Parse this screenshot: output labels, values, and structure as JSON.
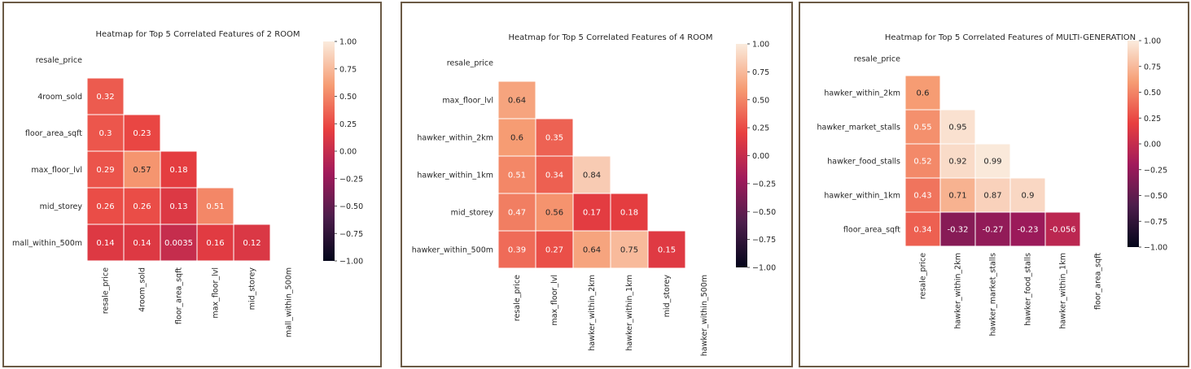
{
  "colors": {
    "border": "#6b5a45",
    "colormap": [
      "#03051a",
      "#4c1d4b",
      "#a11a5b",
      "#e83f3f",
      "#f69c73",
      "#faebdd"
    ],
    "gridline": "#ffffff"
  },
  "chart_data": [
    {
      "type": "heatmap",
      "title": "Heatmap for Top 5 Correlated Features of 2 ROOM",
      "features": [
        "resale_price",
        "4room_sold",
        "floor_area_sqft",
        "max_floor_lvl",
        "mid_storey",
        "mall_within_500m"
      ],
      "cells": [
        [
          "0.32"
        ],
        [
          "0.3",
          "0.23"
        ],
        [
          "0.29",
          "0.57",
          "0.18"
        ],
        [
          "0.26",
          "0.26",
          "0.13",
          "0.51"
        ],
        [
          "0.14",
          "0.14",
          "0.0035",
          "0.16",
          "0.12"
        ]
      ],
      "mask": "upper-triangle-including-diagonal",
      "colorbar": {
        "range": [
          -1,
          1
        ],
        "ticks": [
          "1.00",
          "0.75",
          "0.50",
          "0.25",
          "0.00",
          "−0.25",
          "−0.50",
          "−0.75",
          "−1.00"
        ]
      }
    },
    {
      "type": "heatmap",
      "title": "Heatmap for Top 5 Correlated Features of 4 ROOM",
      "features": [
        "resale_price",
        "max_floor_lvl",
        "hawker_within_2km",
        "hawker_within_1km",
        "mid_storey",
        "hawker_within_500m"
      ],
      "cells": [
        [
          "0.64"
        ],
        [
          "0.6",
          "0.35"
        ],
        [
          "0.51",
          "0.34",
          "0.84"
        ],
        [
          "0.47",
          "0.56",
          "0.17",
          "0.18"
        ],
        [
          "0.39",
          "0.27",
          "0.64",
          "0.75",
          "0.15"
        ]
      ],
      "mask": "upper-triangle-including-diagonal",
      "colorbar": {
        "range": [
          -1,
          1
        ],
        "ticks": [
          "1.00",
          "0.75",
          "0.50",
          "0.25",
          "0.00",
          "−0.25",
          "−0.50",
          "−0.75",
          "−1.00"
        ]
      }
    },
    {
      "type": "heatmap",
      "title": "Heatmap for Top 5 Correlated Features of MULTI-GENERATION",
      "features": [
        "resale_price",
        "hawker_within_2km",
        "hawker_market_stalls",
        "hawker_food_stalls",
        "hawker_within_1km",
        "floor_area_sqft"
      ],
      "cells": [
        [
          "0.6"
        ],
        [
          "0.55",
          "0.95"
        ],
        [
          "0.52",
          "0.92",
          "0.99"
        ],
        [
          "0.43",
          "0.71",
          "0.87",
          "0.9"
        ],
        [
          "0.34",
          "-0.32",
          "-0.27",
          "-0.23",
          "-0.056"
        ]
      ],
      "mask": "upper-triangle-including-diagonal",
      "colorbar": {
        "range": [
          -1,
          1
        ],
        "ticks": [
          "1.00",
          "0.75",
          "0.50",
          "0.25",
          "0.00",
          "−0.25",
          "−0.50",
          "−0.75",
          "−1.00"
        ]
      }
    }
  ]
}
